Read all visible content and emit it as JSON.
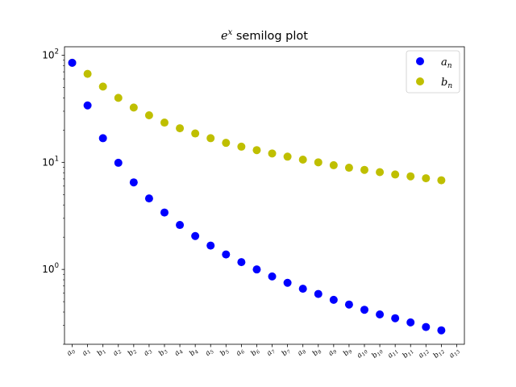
{
  "chart_data": {
    "type": "scatter",
    "title": {
      "base": "e",
      "sup": "x",
      "rest": " semilog plot"
    },
    "yscale": "log",
    "ylim": [
      0.2,
      120
    ],
    "yticks": [
      {
        "value": 1,
        "base": "10",
        "exp": "0"
      },
      {
        "value": 10,
        "base": "10",
        "exp": "1"
      },
      {
        "value": 100,
        "base": "10",
        "exp": "2"
      }
    ],
    "xlim": [
      -0.5,
      25.5
    ],
    "xtick_labels": [
      {
        "base": "a",
        "sub": "0"
      },
      {
        "base": "a",
        "sub": "1"
      },
      {
        "base": "b",
        "sub": "1"
      },
      {
        "base": "a",
        "sub": "2"
      },
      {
        "base": "b",
        "sub": "2"
      },
      {
        "base": "a",
        "sub": "3"
      },
      {
        "base": "b",
        "sub": "3"
      },
      {
        "base": "a",
        "sub": "4"
      },
      {
        "base": "b",
        "sub": "4"
      },
      {
        "base": "a",
        "sub": "5"
      },
      {
        "base": "b",
        "sub": "5"
      },
      {
        "base": "a",
        "sub": "6"
      },
      {
        "base": "b",
        "sub": "6"
      },
      {
        "base": "a",
        "sub": "7"
      },
      {
        "base": "b",
        "sub": "7"
      },
      {
        "base": "a",
        "sub": "8"
      },
      {
        "base": "b",
        "sub": "8"
      },
      {
        "base": "a",
        "sub": "9"
      },
      {
        "base": "b",
        "sub": "9"
      },
      {
        "base": "a",
        "sub": "10"
      },
      {
        "base": "b",
        "sub": "10"
      },
      {
        "base": "a",
        "sub": "11"
      },
      {
        "base": "b",
        "sub": "11"
      },
      {
        "base": "a",
        "sub": "12"
      },
      {
        "base": "b",
        "sub": "12"
      },
      {
        "base": "a",
        "sub": "13"
      }
    ],
    "legend": {
      "placement": "top-right"
    },
    "series": [
      {
        "name": {
          "base": "a",
          "sub": "n"
        },
        "color": "#0000ff",
        "x": [
          0,
          1,
          2,
          3,
          4,
          5,
          6,
          7,
          8,
          9,
          10,
          11,
          12,
          13,
          14,
          15,
          16,
          17,
          18,
          19,
          20,
          21,
          22,
          23,
          24
        ],
        "y": [
          85,
          34,
          16.8,
          9.9,
          6.5,
          4.6,
          3.4,
          2.6,
          2.05,
          1.67,
          1.38,
          1.17,
          1.0,
          0.86,
          0.75,
          0.66,
          0.59,
          0.52,
          0.47,
          0.42,
          0.38,
          0.35,
          0.32,
          0.29,
          0.27
        ]
      },
      {
        "name": {
          "base": "b",
          "sub": "n"
        },
        "color": "#bfbf00",
        "x": [
          0,
          1,
          2,
          3,
          4,
          5,
          6,
          7,
          8,
          9,
          10,
          11,
          12,
          13,
          14,
          15,
          16,
          17,
          18,
          19,
          20,
          21,
          22,
          23,
          24
        ],
        "y": [
          85,
          67,
          51,
          40,
          32.5,
          27.5,
          23.5,
          20.8,
          18.6,
          16.8,
          15.2,
          14.0,
          13.0,
          12.1,
          11.3,
          10.6,
          10.0,
          9.4,
          8.9,
          8.5,
          8.1,
          7.7,
          7.4,
          7.1,
          6.8
        ]
      }
    ]
  }
}
